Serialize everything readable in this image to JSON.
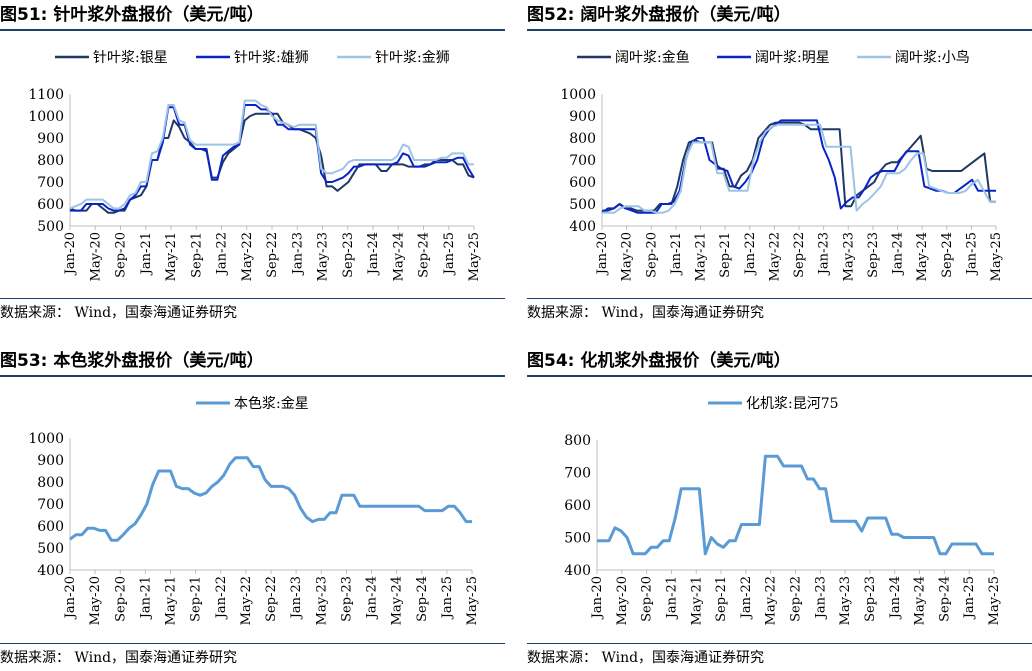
{
  "source_text": "数据来源：  Wind，国泰海通证券研究",
  "x_ticks": [
    "Jan-20",
    "May-20",
    "Sep-20",
    "Jan-21",
    "May-21",
    "Sep-21",
    "Jan-22",
    "May-22",
    "Sep-22",
    "Jan-23",
    "May-23",
    "Sep-23",
    "Jan-24",
    "May-24",
    "Sep-24",
    "Jan-25",
    "May-25"
  ],
  "chart_data": [
    {
      "type": "line",
      "title": "图51:  针叶浆外盘报价（美元/吨）",
      "ylim": [
        500,
        1100
      ],
      "yticks": [
        500,
        600,
        700,
        800,
        900,
        1000,
        1100
      ],
      "legend_position": "top",
      "series": [
        {
          "name": "针叶浆:银星",
          "color": "#1f3864",
          "values": [
            580,
            570,
            570,
            570,
            600,
            600,
            580,
            560,
            560,
            570,
            570,
            620,
            630,
            640,
            680,
            800,
            800,
            900,
            900,
            980,
            950,
            900,
            880,
            850,
            850,
            840,
            720,
            720,
            790,
            830,
            850,
            870,
            980,
            1000,
            1010,
            1010,
            1010,
            1010,
            1010,
            970,
            960,
            940,
            940,
            930,
            920,
            900,
            820,
            680,
            680,
            660,
            680,
            700,
            740,
            780,
            780,
            780,
            780,
            750,
            750,
            780,
            780,
            780,
            770,
            770,
            770,
            780,
            780,
            800,
            800,
            800,
            800,
            780,
            780,
            730,
            720
          ]
        },
        {
          "name": "针叶浆:雄狮",
          "color": "#0b24c8",
          "values": [
            570,
            570,
            570,
            600,
            600,
            600,
            600,
            580,
            570,
            570,
            580,
            620,
            640,
            680,
            680,
            800,
            800,
            880,
            1040,
            1040,
            960,
            960,
            870,
            850,
            850,
            850,
            710,
            710,
            820,
            840,
            860,
            870,
            1050,
            1050,
            1050,
            1030,
            1030,
            1010,
            960,
            960,
            940,
            940,
            940,
            940,
            940,
            940,
            740,
            700,
            700,
            710,
            720,
            740,
            770,
            770,
            780,
            780,
            780,
            780,
            780,
            780,
            790,
            830,
            820,
            770,
            770,
            770,
            780,
            790,
            790,
            790,
            800,
            810,
            810,
            760,
            720
          ]
        },
        {
          "name": "针叶浆:金狮",
          "color": "#9dc3e6",
          "values": [
            580,
            590,
            600,
            620,
            620,
            620,
            620,
            600,
            580,
            580,
            600,
            640,
            650,
            700,
            700,
            830,
            840,
            900,
            1050,
            1050,
            980,
            970,
            890,
            870,
            870,
            870,
            870,
            870,
            870,
            870,
            870,
            880,
            1070,
            1070,
            1070,
            1050,
            1040,
            1000,
            980,
            970,
            960,
            950,
            960,
            960,
            960,
            960,
            760,
            740,
            740,
            750,
            760,
            790,
            800,
            800,
            800,
            800,
            800,
            800,
            800,
            800,
            820,
            870,
            860,
            800,
            800,
            800,
            800,
            800,
            810,
            810,
            830,
            830,
            830,
            780,
            780
          ]
        }
      ]
    },
    {
      "type": "line",
      "title": "图52:  阔叶浆外盘报价（美元/吨）",
      "ylim": [
        400,
        1000
      ],
      "yticks": [
        400,
        500,
        600,
        700,
        800,
        900,
        1000
      ],
      "legend_position": "top",
      "series": [
        {
          "name": "阔叶浆:金鱼",
          "color": "#1f3864",
          "values": [
            470,
            470,
            480,
            500,
            480,
            480,
            470,
            470,
            470,
            470,
            500,
            500,
            500,
            580,
            700,
            780,
            790,
            780,
            780,
            780,
            660,
            660,
            580,
            580,
            630,
            650,
            700,
            800,
            830,
            860,
            870,
            870,
            870,
            870,
            870,
            860,
            840,
            840,
            840,
            840,
            840,
            840,
            490,
            490,
            540,
            560,
            580,
            600,
            650,
            680,
            690,
            690,
            720,
            750,
            780,
            810,
            660,
            650,
            650,
            650,
            650,
            650,
            650,
            670,
            690,
            710,
            730,
            510,
            510
          ]
        },
        {
          "name": "阔叶浆:明星",
          "color": "#0b24c8",
          "values": [
            460,
            480,
            480,
            500,
            480,
            470,
            460,
            460,
            460,
            460,
            500,
            500,
            510,
            560,
            700,
            780,
            800,
            800,
            700,
            680,
            660,
            650,
            580,
            570,
            600,
            640,
            700,
            800,
            840,
            860,
            880,
            880,
            880,
            880,
            880,
            880,
            880,
            760,
            700,
            620,
            480,
            510,
            530,
            530,
            570,
            620,
            640,
            650,
            650,
            650,
            700,
            740,
            740,
            740,
            580,
            570,
            560,
            560,
            550,
            550,
            570,
            590,
            610,
            560,
            560,
            560,
            560
          ]
        },
        {
          "name": "阔叶浆:小鸟",
          "color": "#9dc3e6",
          "values": [
            460,
            460,
            460,
            480,
            490,
            490,
            490,
            470,
            470,
            460,
            460,
            470,
            500,
            560,
            720,
            780,
            780,
            780,
            780,
            640,
            640,
            560,
            560,
            560,
            560,
            700,
            780,
            830,
            850,
            860,
            860,
            860,
            860,
            860,
            860,
            860,
            860,
            760,
            760,
            760,
            760,
            760,
            470,
            500,
            520,
            550,
            580,
            640,
            640,
            640,
            660,
            700,
            730,
            730,
            580,
            570,
            560,
            550,
            550,
            550,
            560,
            590,
            610,
            560,
            510,
            510
          ]
        }
      ]
    },
    {
      "type": "line",
      "title": "图53:  本色浆外盘报价（美元/吨）",
      "ylim": [
        400,
        1000
      ],
      "yticks": [
        400,
        500,
        600,
        700,
        800,
        900,
        1000
      ],
      "legend_position": "top",
      "series": [
        {
          "name": "本色浆:金星",
          "color": "#5b9bd5",
          "values": [
            540,
            560,
            560,
            590,
            590,
            580,
            580,
            535,
            535,
            560,
            590,
            610,
            650,
            700,
            790,
            850,
            850,
            850,
            780,
            770,
            770,
            750,
            740,
            750,
            780,
            800,
            830,
            880,
            910,
            910,
            910,
            870,
            870,
            810,
            780,
            780,
            780,
            770,
            740,
            680,
            640,
            620,
            630,
            630,
            660,
            660,
            740,
            740,
            740,
            690,
            690,
            690,
            690,
            690,
            690,
            690,
            690,
            690,
            690,
            690,
            670,
            670,
            670,
            670,
            690,
            690,
            660,
            620,
            620
          ]
        }
      ]
    },
    {
      "type": "line",
      "title": "图54:  化机浆外盘报价（美元/吨）",
      "ylim": [
        400,
        800
      ],
      "yticks": [
        400,
        500,
        600,
        700,
        800
      ],
      "legend_position": "top",
      "series": [
        {
          "name": "化机浆:昆河75",
          "color": "#5b9bd5",
          "values": [
            490,
            490,
            490,
            530,
            520,
            500,
            450,
            450,
            450,
            470,
            470,
            490,
            490,
            560,
            650,
            650,
            650,
            650,
            450,
            500,
            480,
            470,
            490,
            490,
            540,
            540,
            540,
            540,
            750,
            750,
            750,
            720,
            720,
            720,
            720,
            680,
            680,
            650,
            650,
            550,
            550,
            550,
            550,
            550,
            520,
            560,
            560,
            560,
            560,
            510,
            510,
            500,
            500,
            500,
            500,
            500,
            500,
            450,
            450,
            480,
            480,
            480,
            480,
            480,
            450,
            450,
            450
          ]
        }
      ]
    }
  ]
}
